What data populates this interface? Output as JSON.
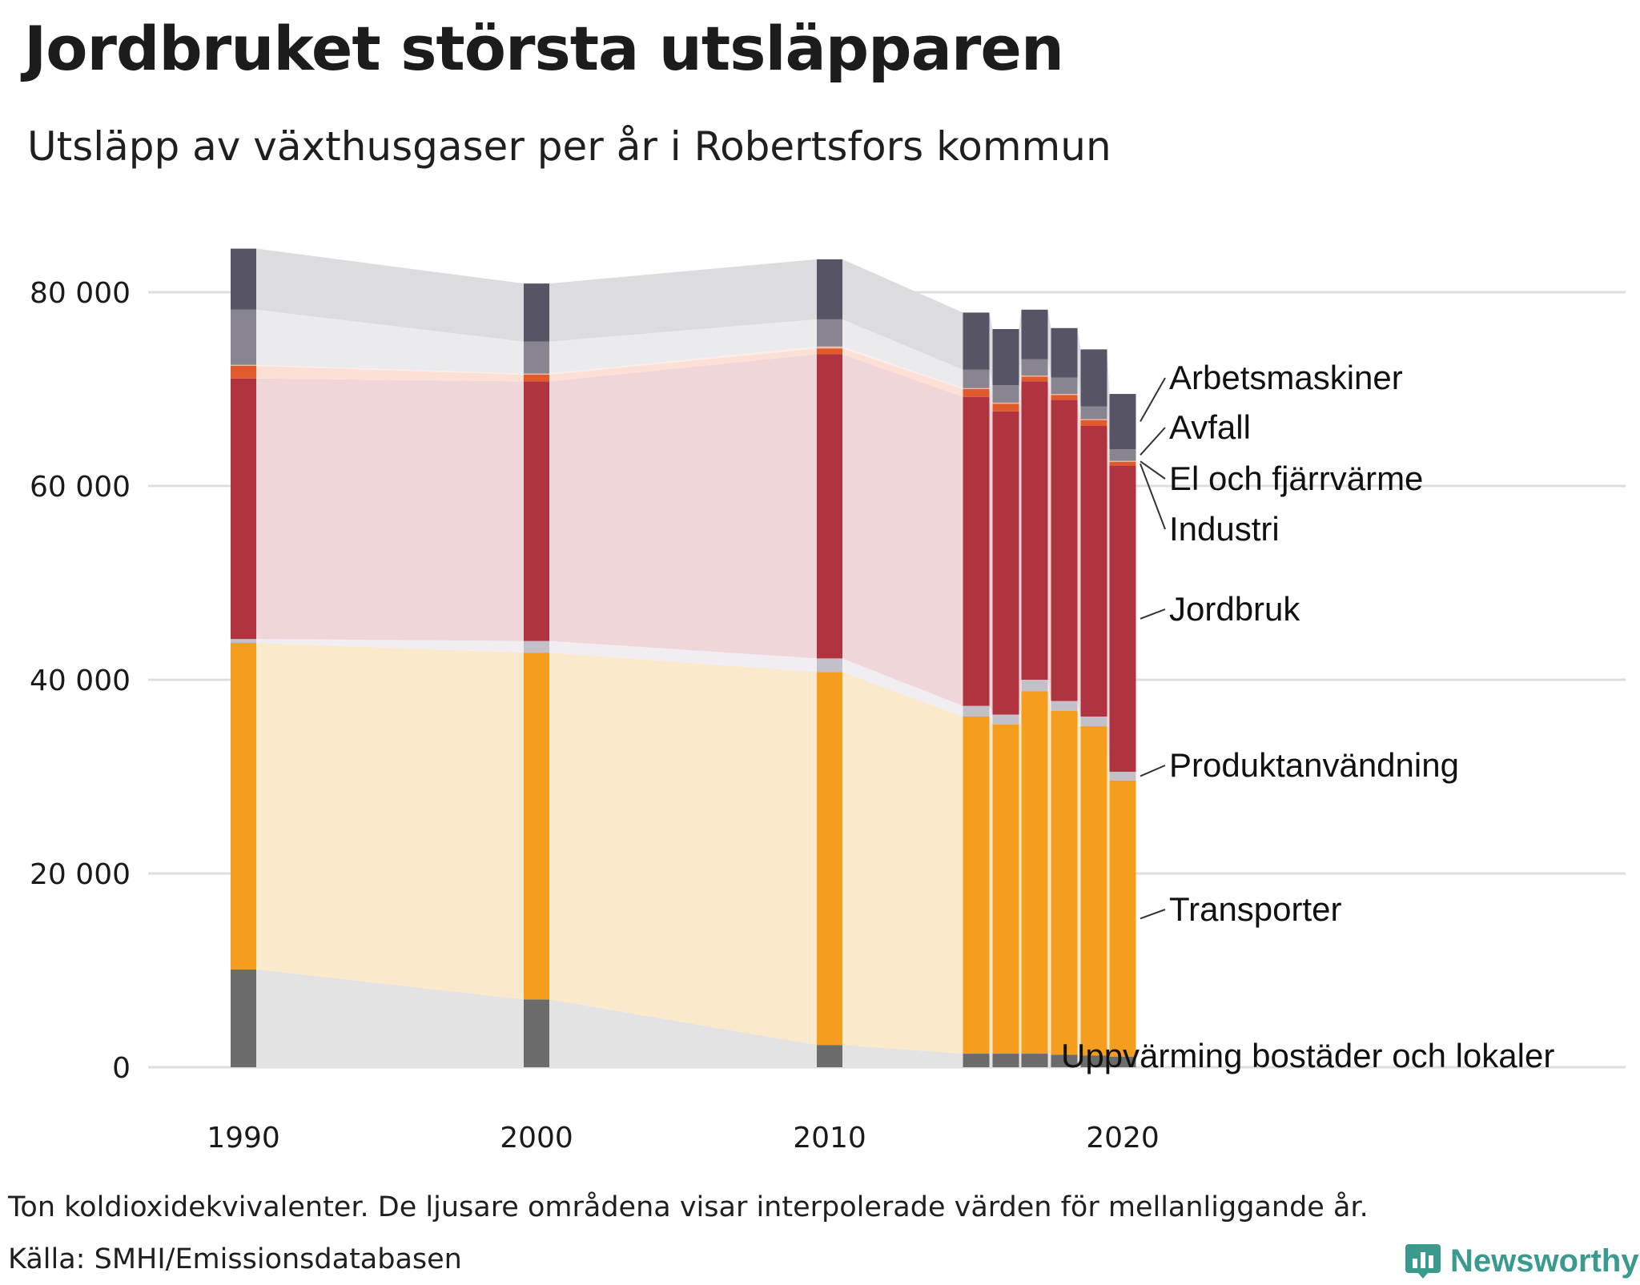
{
  "header": {
    "title": "Jordbruket största utsläpparen",
    "subtitle": "Utsläpp av växthusgaser per år i Robertsfors kommun"
  },
  "footer": {
    "note": "Ton koldioxidekvivalenter. De ljusare områdena visar interpolerade värden för mellanliggande år.",
    "source": "Källa: SMHI/Emissionsdatabasen",
    "brand": "Newsworthy"
  },
  "chart_data": {
    "type": "bar",
    "stacked": true,
    "interpolated_area_between_bars": true,
    "ylim": [
      0,
      88000
    ],
    "y_ticks": [
      0,
      20000,
      40000,
      60000,
      80000
    ],
    "y_tick_labels": [
      "0",
      "20 000",
      "40 000",
      "60 000",
      "80 000"
    ],
    "x_tick_labels": [
      "1990",
      "2000",
      "2010",
      "2020"
    ],
    "categories": [
      "1990",
      "2000",
      "2010",
      "2015",
      "2016",
      "2017",
      "2018",
      "2019",
      "2020"
    ],
    "series": [
      {
        "name": "Uppvärming bostäder och lokaler",
        "color": "#6b6b6b",
        "area_color": "#e3e3e3",
        "values": [
          10100,
          7000,
          2300,
          1400,
          1400,
          1400,
          1300,
          1200,
          1100
        ]
      },
      {
        "name": "Transporter",
        "color": "#f59d1c",
        "area_color": "#fbe9cc",
        "values": [
          33700,
          35800,
          38500,
          34800,
          34000,
          37400,
          35500,
          34000,
          28500
        ]
      },
      {
        "name": "Produktanvändning",
        "color": "#c3c0c9",
        "area_color": "#f0eef2",
        "values": [
          400,
          1200,
          1400,
          1100,
          1000,
          1200,
          1000,
          1000,
          900
        ]
      },
      {
        "name": "Jordbruk",
        "color": "#b03340",
        "area_color": "#f0d6d9",
        "values": [
          26900,
          26800,
          31400,
          31900,
          31300,
          30800,
          31100,
          30000,
          31600
        ]
      },
      {
        "name": "Industri",
        "color": "#e05a2b",
        "area_color": "#fce0d6",
        "values": [
          1300,
          700,
          600,
          800,
          800,
          500,
          500,
          600,
          400
        ]
      },
      {
        "name": "El och fjärrvärme",
        "color": "#f0b8a0",
        "area_color": "#fbeee8",
        "values": [
          100,
          100,
          200,
          100,
          100,
          100,
          100,
          100,
          100
        ]
      },
      {
        "name": "Avfall",
        "color": "#888591",
        "area_color": "#ebeaed",
        "values": [
          5700,
          3300,
          2800,
          1900,
          1800,
          1700,
          1700,
          1300,
          1200
        ]
      },
      {
        "name": "Arbetsmaskiner",
        "color": "#575565",
        "area_color": "#dcdbdf",
        "values": [
          6300,
          6000,
          6200,
          5900,
          5800,
          5100,
          5100,
          5900,
          5700
        ]
      }
    ]
  }
}
